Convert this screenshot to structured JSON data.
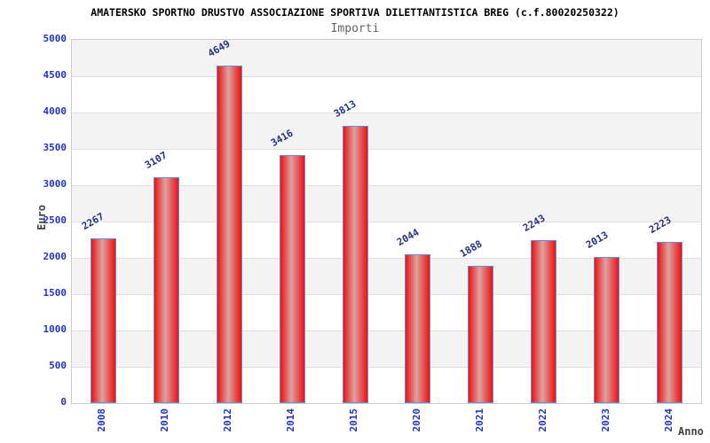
{
  "chart_data": {
    "type": "bar",
    "title": "AMATERSKO SPORTNO DRUSTVO ASSOCIAZIONE SPORTIVA DILETTANTISTICA BREG (c.f.80020250322)",
    "subtitle": "Importi",
    "xlabel": "Anno",
    "ylabel": "Euro",
    "categories": [
      "2008",
      "2010",
      "2012",
      "2014",
      "2015",
      "2020",
      "2021",
      "2022",
      "2023",
      "2024"
    ],
    "values": [
      2267,
      3107,
      4649,
      3416,
      3813,
      2044,
      1888,
      2243,
      2013,
      2223
    ],
    "ylim": [
      0,
      5000
    ],
    "ytick_step": 500,
    "grid": "horizontal-bands",
    "legend": "none",
    "bar_value_labels": "rotated above bars",
    "x_tick_labels": "rotated vertical"
  },
  "colors": {
    "background": "#ffffff",
    "title": "#000000",
    "subtitle": "#666666",
    "band": "#f3f3f3",
    "gridline": "#e0e0e0",
    "plot_border": "#cccccc",
    "bar_edge": "#ee1111",
    "bar_center": "#dda2a2",
    "bar_border": "#5b93e8",
    "axis_tick_label": "#2233cc",
    "value_label": "#223388",
    "axis_title": "#444444"
  }
}
